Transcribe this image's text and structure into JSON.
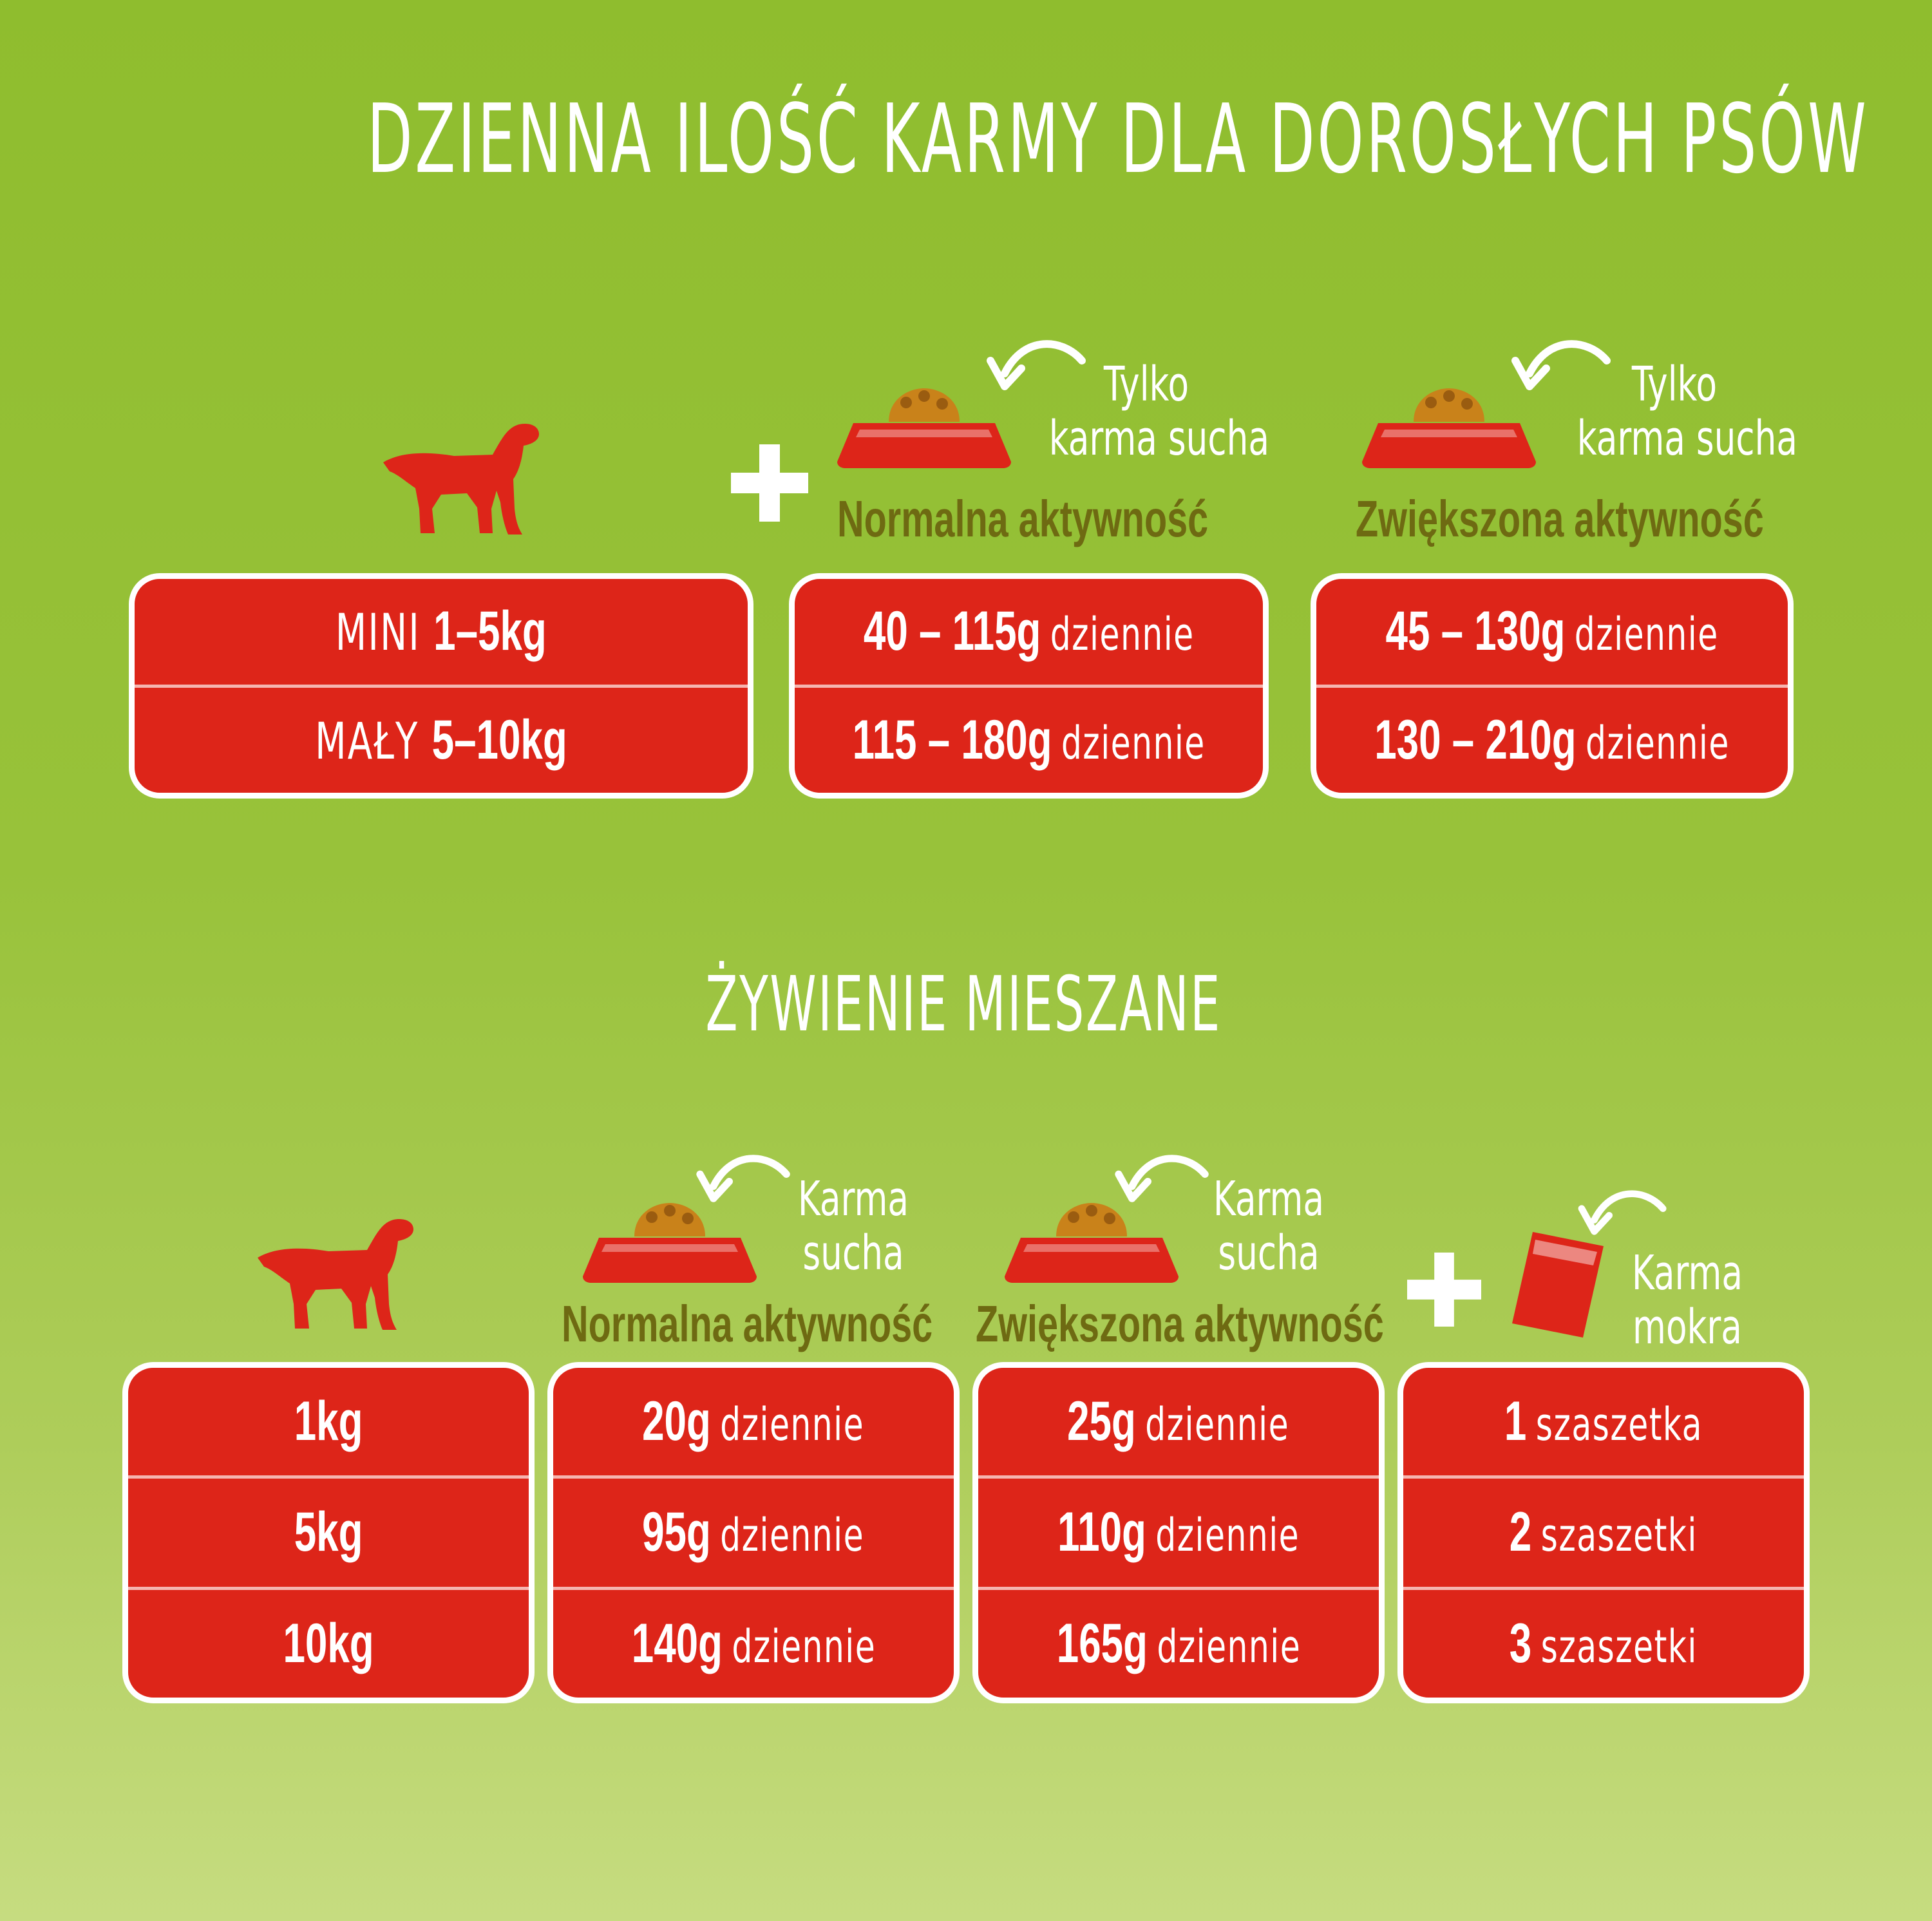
{
  "title": "DZIENNA ILOŚĆ KARMY DLA DOROSŁYCH PSÓW",
  "dry_only": {
    "normal": {
      "note_line1": "Tylko",
      "note_line2": "karma sucha",
      "activity": "Normalna aktywność",
      "rows": [
        {
          "value": "40 – 115g",
          "unit": "dziennie"
        },
        {
          "value": "115 – 180g",
          "unit": "dziennie"
        }
      ]
    },
    "increased": {
      "note_line1": "Tylko",
      "note_line2": "karma sucha",
      "activity": "Zwiększona aktywność",
      "rows": [
        {
          "value": "45 – 130g",
          "unit": "dziennie"
        },
        {
          "value": "130 – 210g",
          "unit": "dziennie"
        }
      ]
    },
    "sizes": [
      {
        "label": "MINI",
        "value": "1–5kg"
      },
      {
        "label": "MAŁY",
        "value": "5–10kg"
      }
    ]
  },
  "mixed": {
    "title": "ŻYWIENIE MIESZANE",
    "weights": [
      "1kg",
      "5kg",
      "10kg"
    ],
    "normal": {
      "note_line1": "Karma",
      "note_line2": "sucha",
      "activity": "Normalna aktywność",
      "rows": [
        {
          "value": "20g",
          "unit": "dziennie"
        },
        {
          "value": "95g",
          "unit": "dziennie"
        },
        {
          "value": "140g",
          "unit": "dziennie"
        }
      ]
    },
    "increased": {
      "note_line1": "Karma",
      "note_line2": "sucha",
      "activity": "Zwiększona aktywność",
      "rows": [
        {
          "value": "25g",
          "unit": "dziennie"
        },
        {
          "value": "110g",
          "unit": "dziennie"
        },
        {
          "value": "165g",
          "unit": "dziennie"
        }
      ]
    },
    "wet": {
      "note_line1": "Karma",
      "note_line2": "mokra",
      "rows": [
        {
          "value": "1",
          "unit": "szaszetka"
        },
        {
          "value": "2",
          "unit": "szaszetki"
        },
        {
          "value": "3",
          "unit": "szaszetki"
        }
      ]
    }
  },
  "colors": {
    "red": "#dd2519",
    "green_bg": "#8fbd2e",
    "olive_text": "#6e6a12",
    "kibble": "#c9821a"
  },
  "icons": [
    "dog-icon",
    "plus-icon",
    "food-bowl-icon",
    "curved-arrow-icon",
    "pouch-icon"
  ]
}
